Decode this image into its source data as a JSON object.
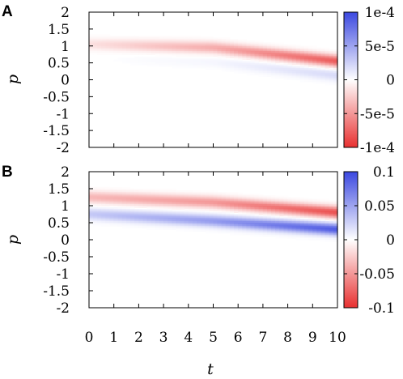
{
  "chart_data": [
    {
      "type": "heatmap",
      "panel_label": "A",
      "xlabel": "t",
      "ylabel": "p",
      "xlim": [
        0,
        10
      ],
      "ylim": [
        -2,
        2
      ],
      "yticks": [
        "2",
        "1.5",
        "1",
        "0.5",
        "0",
        "-0.5",
        "-1",
        "-1.5",
        "-2"
      ],
      "xticks": [],
      "colorbar": {
        "range": [
          -0.0001,
          0.0001
        ],
        "tick_labels": [
          "1e-4",
          "5e-5",
          "0",
          "-5e-5",
          "-1e-4"
        ],
        "low_color": "#e83030",
        "mid_color": "#ffffff",
        "high_color": "#3b48e0"
      },
      "field": {
        "description_points": [
          {
            "t": 0,
            "p_center_neg": 1.05,
            "neg_amplitude": -1.5e-05,
            "pos_amplitude": 0.0
          },
          {
            "t": 5,
            "p_center_neg": 0.95,
            "neg_amplitude": -4e-05,
            "pos_amplitude": 5e-06
          },
          {
            "t": 10,
            "p_center_neg": 0.55,
            "neg_amplitude": -8e-05,
            "pos_amplitude": 2e-05
          }
        ]
      }
    },
    {
      "type": "heatmap",
      "panel_label": "B",
      "xlabel": "t",
      "ylabel": "p",
      "xlim": [
        0,
        10
      ],
      "ylim": [
        -2,
        2
      ],
      "yticks": [
        "2",
        "1.5",
        "1",
        "0.5",
        "0",
        "-0.5",
        "-1",
        "-1.5",
        "-2"
      ],
      "xticks": [
        "0",
        "1",
        "2",
        "3",
        "4",
        "5",
        "6",
        "7",
        "8",
        "9",
        "10"
      ],
      "colorbar": {
        "range": [
          -0.1,
          0.1
        ],
        "tick_labels": [
          "0.1",
          "0.05",
          "0",
          "-0.05",
          "-0.1"
        ],
        "low_color": "#e83030",
        "mid_color": "#ffffff",
        "high_color": "#3b48e0"
      },
      "field": {
        "description_points": [
          {
            "t": 0,
            "p_center_neg": 1.25,
            "p_center_pos": 0.75,
            "neg_amplitude": -0.035,
            "pos_amplitude": 0.03
          },
          {
            "t": 5,
            "p_center_neg": 1.1,
            "p_center_pos": 0.55,
            "neg_amplitude": -0.05,
            "pos_amplitude": 0.055
          },
          {
            "t": 10,
            "p_center_neg": 0.8,
            "p_center_pos": 0.3,
            "neg_amplitude": -0.085,
            "pos_amplitude": 0.09
          }
        ]
      }
    }
  ]
}
